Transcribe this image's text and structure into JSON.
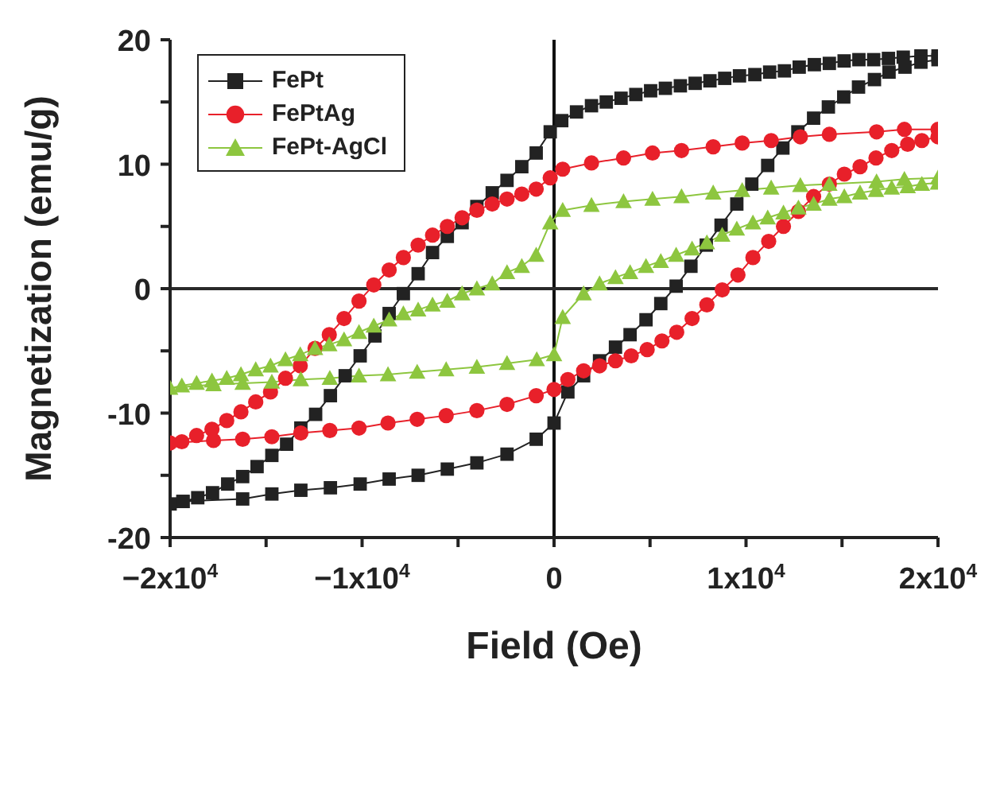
{
  "chart_data": {
    "type": "line",
    "xlabel": "Field (Oe)",
    "ylabel": "Magnetization (emu/g)",
    "xlim": [
      -20000,
      20000
    ],
    "ylim": [
      -20,
      20
    ],
    "xticks": [
      {
        "value": -20000,
        "label": "−2x10$^{4}$"
      },
      {
        "value": -15000,
        "label": null
      },
      {
        "value": -10000,
        "label": "−1x10$^{4}$"
      },
      {
        "value": -5000,
        "label": null
      },
      0,
      {
        "value": 5000,
        "label": null
      },
      {
        "value": 10000,
        "label": "1x10$^{4}$"
      },
      {
        "value": 15000,
        "label": null
      },
      {
        "value": 20000,
        "label": "2x10$^{4}$"
      }
    ],
    "yticks": [
      -20,
      {
        "value": -15,
        "label": null
      },
      -10,
      {
        "value": -5,
        "label": null
      },
      0,
      {
        "value": 5,
        "label": null
      },
      10,
      {
        "value": 15,
        "label": null
      },
      20
    ],
    "grid": false,
    "legend": "top left",
    "ref_lines": [
      {
        "axis": "x",
        "value": 0,
        "color": "#111111"
      },
      {
        "axis": "y",
        "value": 0,
        "color": "#2a2a2a"
      }
    ],
    "series": [
      {
        "name": "FePt",
        "color": "#222222",
        "marker": "square",
        "x": [
          20000,
          19110,
          18190,
          17420,
          16650,
          15880,
          15110,
          14340,
          13560,
          12770,
          12000,
          11230,
          10460,
          9660,
          8890,
          8120,
          7350,
          6580,
          5800,
          5030,
          4260,
          3490,
          2720,
          1950,
          1170,
          400,
          -200,
          -930,
          -1680,
          -2450,
          -3220,
          -4020,
          -4790,
          -5560,
          -6330,
          -7080,
          -7850,
          -8590,
          -9330,
          -10100,
          -10880,
          -11650,
          -12420,
          -13190,
          -13930,
          -14700,
          -15470,
          -16220,
          -17000,
          -17790,
          -18560,
          -19330,
          -20000,
          -19330,
          -16220,
          -14700,
          -13190,
          -11650,
          -10100,
          -8590,
          -7080,
          -5560,
          -4020,
          -2450,
          -930,
          0,
          720,
          1540,
          2370,
          3200,
          3960,
          4790,
          5560,
          6360,
          7130,
          7930,
          8700,
          9520,
          10300,
          11130,
          11920,
          12700,
          13520,
          14290,
          15090,
          15860,
          16690,
          17450,
          18280,
          19110,
          20000
        ],
        "values": [
          18.7,
          18.7,
          18.6,
          18.5,
          18.4,
          18.4,
          18.3,
          18.1,
          18.0,
          17.8,
          17.5,
          17.4,
          17.2,
          17.1,
          16.9,
          16.7,
          16.5,
          16.3,
          16.1,
          15.9,
          15.6,
          15.3,
          15.0,
          14.7,
          14.2,
          13.5,
          12.6,
          10.9,
          9.8,
          8.7,
          7.7,
          6.6,
          5.3,
          4.2,
          2.9,
          1.2,
          -0.4,
          -2.0,
          -3.8,
          -5.4,
          -7.0,
          -8.6,
          -10.1,
          -11.2,
          -12.5,
          -13.4,
          -14.3,
          -15.1,
          -15.7,
          -16.4,
          -16.8,
          -17.1,
          -17.3,
          -17.1,
          -16.9,
          -16.5,
          -16.2,
          -16.0,
          -15.7,
          -15.3,
          -15.0,
          -14.5,
          -14.0,
          -13.3,
          -12.1,
          -10.8,
          -8.3,
          -7.0,
          -5.8,
          -4.7,
          -3.7,
          -2.5,
          -1.2,
          0.2,
          1.8,
          3.5,
          5.1,
          6.8,
          8.4,
          9.9,
          11.3,
          12.6,
          13.7,
          14.6,
          15.4,
          16.2,
          16.8,
          17.4,
          17.8,
          18.2,
          18.4
        ]
      },
      {
        "name": "FePtAg",
        "color": "#e8202a",
        "marker": "circle",
        "x": [
          20000,
          18250,
          16800,
          14340,
          12830,
          11310,
          9800,
          8290,
          6640,
          5130,
          3620,
          1950,
          450,
          -200,
          -930,
          -1680,
          -2450,
          -3220,
          -4020,
          -4790,
          -5560,
          -6330,
          -7080,
          -7850,
          -8590,
          -9390,
          -10160,
          -10940,
          -11710,
          -12450,
          -13220,
          -13990,
          -14770,
          -15540,
          -16310,
          -17050,
          -17820,
          -18620,
          -19390,
          -20000,
          -17740,
          -16220,
          -14700,
          -13190,
          -11680,
          -10160,
          -8650,
          -7130,
          -5620,
          -4020,
          -2450,
          -930,
          0,
          720,
          1540,
          2370,
          3200,
          4020,
          4850,
          5620,
          6390,
          7190,
          7960,
          8760,
          9580,
          10360,
          11180,
          11950,
          12730,
          13520,
          14340,
          15120,
          15940,
          16770,
          17590,
          18420,
          19160,
          20000
        ],
        "values": [
          12.8,
          12.8,
          12.6,
          12.4,
          12.2,
          11.9,
          11.7,
          11.4,
          11.1,
          10.9,
          10.5,
          10.1,
          9.6,
          8.9,
          8.0,
          7.6,
          7.2,
          6.8,
          6.3,
          5.7,
          5.0,
          4.3,
          3.5,
          2.5,
          1.5,
          0.3,
          -1.0,
          -2.4,
          -3.7,
          -4.8,
          -6.2,
          -7.2,
          -8.3,
          -9.1,
          -9.9,
          -10.6,
          -11.3,
          -11.8,
          -12.3,
          -12.4,
          -12.2,
          -12.1,
          -11.9,
          -11.6,
          -11.4,
          -11.2,
          -10.8,
          -10.5,
          -10.2,
          -9.8,
          -9.3,
          -8.6,
          -8.1,
          -7.3,
          -6.6,
          -6.2,
          -5.8,
          -5.4,
          -4.9,
          -4.2,
          -3.5,
          -2.4,
          -1.3,
          -0.1,
          1.1,
          2.5,
          3.8,
          5.0,
          6.2,
          7.4,
          8.4,
          9.2,
          9.8,
          10.5,
          11.1,
          11.6,
          11.9,
          12.2
        ]
      },
      {
        "name": "FePt-AgCl",
        "color": "#8dc63f",
        "marker": "triangle",
        "x": [
          20000,
          18250,
          16800,
          14340,
          12830,
          11310,
          9800,
          8290,
          6640,
          5130,
          3620,
          1950,
          450,
          -200,
          -930,
          -1680,
          -2450,
          -3220,
          -4020,
          -4790,
          -5560,
          -6330,
          -7080,
          -7850,
          -8590,
          -9390,
          -10160,
          -10940,
          -11710,
          -12450,
          -13220,
          -13990,
          -14770,
          -15540,
          -16310,
          -17050,
          -17820,
          -18620,
          -19390,
          -20000,
          -17740,
          -16220,
          -14700,
          -13190,
          -11680,
          -10160,
          -8650,
          -7130,
          -5620,
          -4020,
          -2450,
          -900,
          0,
          450,
          1540,
          2370,
          3200,
          3960,
          4790,
          5560,
          6360,
          7190,
          7960,
          8760,
          9520,
          10360,
          11130,
          11950,
          12730,
          13520,
          14340,
          15120,
          15940,
          16770,
          17590,
          18420,
          19160,
          20000
        ],
        "values": [
          8.9,
          8.8,
          8.6,
          8.4,
          8.3,
          8.1,
          7.9,
          7.7,
          7.4,
          7.2,
          7.0,
          6.7,
          6.3,
          5.3,
          2.7,
          1.8,
          1.3,
          0.4,
          0.0,
          -0.4,
          -1.0,
          -1.3,
          -1.7,
          -2.0,
          -2.5,
          -3.0,
          -3.5,
          -4.1,
          -4.5,
          -4.8,
          -5.3,
          -5.7,
          -6.2,
          -6.5,
          -6.9,
          -7.2,
          -7.4,
          -7.6,
          -7.8,
          -8.0,
          -7.7,
          -7.6,
          -7.5,
          -7.3,
          -7.2,
          -7.0,
          -6.9,
          -6.7,
          -6.5,
          -6.3,
          -6.0,
          -5.7,
          -5.3,
          -2.3,
          -0.4,
          0.4,
          0.9,
          1.3,
          1.8,
          2.2,
          2.7,
          3.2,
          3.7,
          4.3,
          4.8,
          5.3,
          5.7,
          6.1,
          6.5,
          6.8,
          7.2,
          7.4,
          7.7,
          7.9,
          8.1,
          8.2,
          8.4,
          8.5
        ]
      }
    ]
  }
}
